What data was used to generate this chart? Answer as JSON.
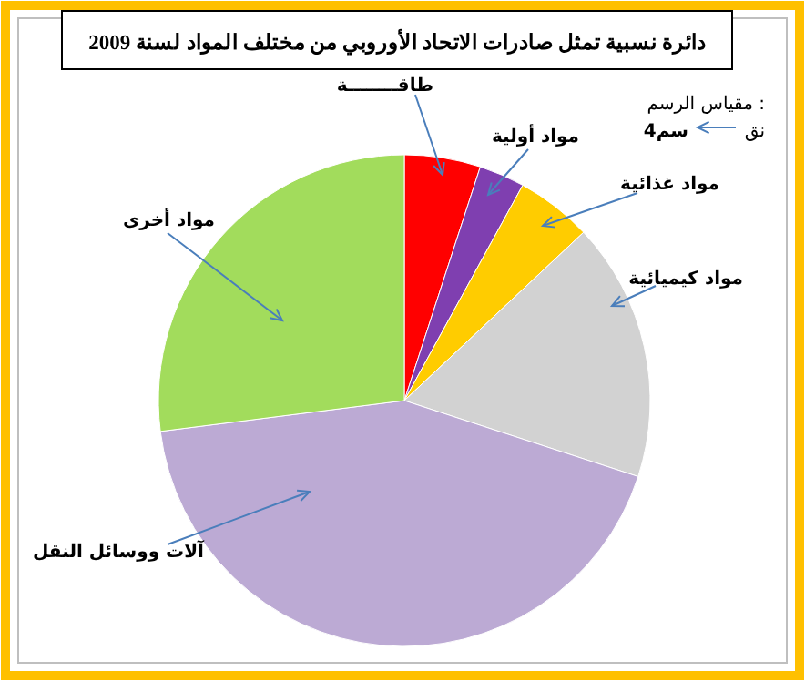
{
  "chart_data": {
    "type": "pie",
    "title": "دائرة نسبية تمثل صادرات الاتحاد الأوروبي من مختلف المواد لسنة 2009",
    "categories": [
      "طاقــــــــة",
      "مواد أولية",
      "مواد غذائية",
      "مواد كيميائية",
      "آلات ووسائل النقل",
      "مواد أخرى"
    ],
    "values": [
      5,
      3,
      5,
      17,
      43,
      27
    ],
    "colors": [
      "#ff0000",
      "#7f3fb0",
      "#ffcc00",
      "#d2d2d2",
      "#bcaad4",
      "#a2dc5c"
    ],
    "annotations": [
      "مقياس الرسم :",
      "نق",
      "4سم"
    ]
  }
}
